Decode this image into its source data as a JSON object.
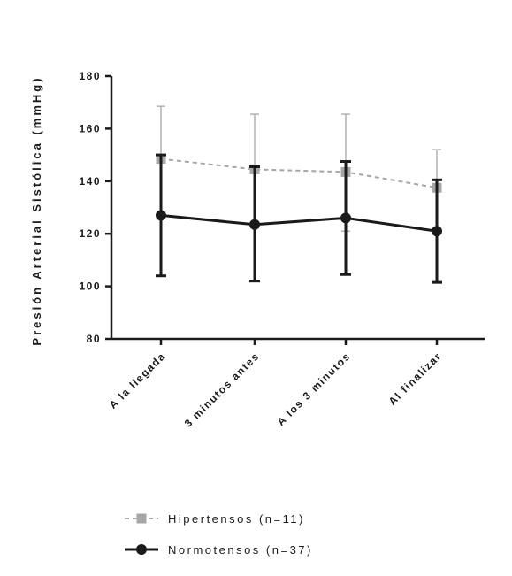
{
  "chart_data": {
    "type": "line",
    "ylabel": "Presión Arterial Sistólica (mmHg)",
    "xlabel": "",
    "ylim": [
      80,
      180
    ],
    "yticks": [
      80,
      100,
      120,
      140,
      160,
      180
    ],
    "categories": [
      "A la llegada",
      "3 minutos antes",
      "A los 3 minutos",
      "Al finalizar"
    ],
    "grid": false,
    "legend_position": "bottom-left",
    "series": [
      {
        "name": "Hipertensos (n=11)",
        "values": [
          148.5,
          144.5,
          143.5,
          137.5
        ],
        "err_upper": [
          168.5,
          165.5,
          165.5,
          152
        ],
        "err_lower": [
          149,
          144.5,
          121,
          137.5
        ],
        "color": "#a6a6a6",
        "marker": "square",
        "line_style": "dashed"
      },
      {
        "name": "Normotensos (n=37)",
        "values": [
          127,
          123.5,
          126,
          121
        ],
        "err_upper": [
          150,
          145.5,
          147.5,
          140.5
        ],
        "err_lower": [
          104,
          102,
          104.5,
          101.5
        ],
        "color": "#1a1a1a",
        "marker": "circle",
        "line_style": "solid"
      }
    ]
  }
}
